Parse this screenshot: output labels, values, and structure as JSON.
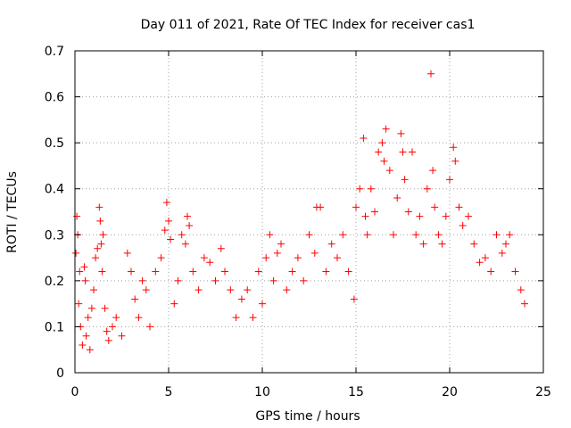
{
  "chart_data": {
    "type": "scatter",
    "title": "Day 011 of 2021, Rate Of TEC Index for receiver cas1",
    "xlabel": "GPS time / hours",
    "ylabel": "ROTI / TECUs",
    "xlim": [
      0,
      25
    ],
    "ylim": [
      0,
      0.7
    ],
    "x_ticks": [
      "0",
      "5",
      "10",
      "15",
      "20",
      "25"
    ],
    "y_ticks": [
      "0",
      "0.1",
      "0.2",
      "0.3",
      "0.4",
      "0.5",
      "0.6",
      "0.7"
    ],
    "grid": true,
    "marker": "plus",
    "color": "#ff0000",
    "series": [
      {
        "x": [
          0.05,
          0.1,
          0.15,
          0.2,
          0.25,
          0.3,
          0.4,
          0.5,
          0.55,
          0.6,
          0.7,
          0.8,
          0.9,
          1.0,
          1.1,
          1.2,
          1.3,
          1.35,
          1.4,
          1.45,
          1.5,
          1.6,
          1.7,
          1.8,
          2.0,
          2.2,
          2.5,
          2.8,
          3.0,
          3.2,
          3.4,
          3.6,
          3.8,
          4.0,
          4.3,
          4.6,
          4.8,
          4.9,
          5.0,
          5.1,
          5.3,
          5.5,
          5.7,
          5.9,
          6.0,
          6.1,
          6.3,
          6.6,
          6.9,
          7.2,
          7.5,
          7.8,
          8.0,
          8.3,
          8.6,
          8.9,
          9.2,
          9.5,
          9.8,
          10.0,
          10.2,
          10.4,
          10.6,
          10.8,
          11.0,
          11.3,
          11.6,
          11.9,
          12.2,
          12.5,
          12.8,
          12.9,
          13.1,
          13.4,
          13.7,
          14.0,
          14.3,
          14.6,
          14.9,
          15.0,
          15.2,
          15.4,
          15.5,
          15.6,
          15.8,
          16.0,
          16.2,
          16.4,
          16.5,
          16.6,
          16.8,
          17.0,
          17.2,
          17.4,
          17.5,
          17.6,
          17.8,
          18.0,
          18.2,
          18.4,
          18.6,
          18.8,
          19.0,
          19.1,
          19.2,
          19.4,
          19.6,
          19.8,
          20.0,
          20.2,
          20.3,
          20.5,
          20.7,
          21.0,
          21.3,
          21.6,
          21.9,
          22.2,
          22.5,
          22.8,
          23.0,
          23.2,
          23.5,
          23.8,
          24.0
        ],
        "y": [
          0.26,
          0.34,
          0.3,
          0.15,
          0.22,
          0.1,
          0.06,
          0.23,
          0.2,
          0.08,
          0.12,
          0.05,
          0.14,
          0.18,
          0.25,
          0.27,
          0.36,
          0.33,
          0.28,
          0.22,
          0.3,
          0.14,
          0.09,
          0.07,
          0.1,
          0.12,
          0.08,
          0.26,
          0.22,
          0.16,
          0.12,
          0.2,
          0.18,
          0.1,
          0.22,
          0.25,
          0.31,
          0.37,
          0.33,
          0.29,
          0.15,
          0.2,
          0.3,
          0.28,
          0.34,
          0.32,
          0.22,
          0.18,
          0.25,
          0.24,
          0.2,
          0.27,
          0.22,
          0.18,
          0.12,
          0.16,
          0.18,
          0.12,
          0.22,
          0.15,
          0.25,
          0.3,
          0.2,
          0.26,
          0.28,
          0.18,
          0.22,
          0.25,
          0.2,
          0.3,
          0.26,
          0.36,
          0.36,
          0.22,
          0.28,
          0.25,
          0.3,
          0.22,
          0.16,
          0.36,
          0.4,
          0.51,
          0.34,
          0.3,
          0.4,
          0.35,
          0.48,
          0.5,
          0.46,
          0.53,
          0.44,
          0.3,
          0.38,
          0.52,
          0.48,
          0.42,
          0.35,
          0.48,
          0.3,
          0.34,
          0.28,
          0.4,
          0.65,
          0.44,
          0.36,
          0.3,
          0.28,
          0.34,
          0.42,
          0.49,
          0.46,
          0.36,
          0.32,
          0.34,
          0.28,
          0.24,
          0.25,
          0.22,
          0.3,
          0.26,
          0.28,
          0.3,
          0.22,
          0.18,
          0.15
        ]
      }
    ]
  }
}
